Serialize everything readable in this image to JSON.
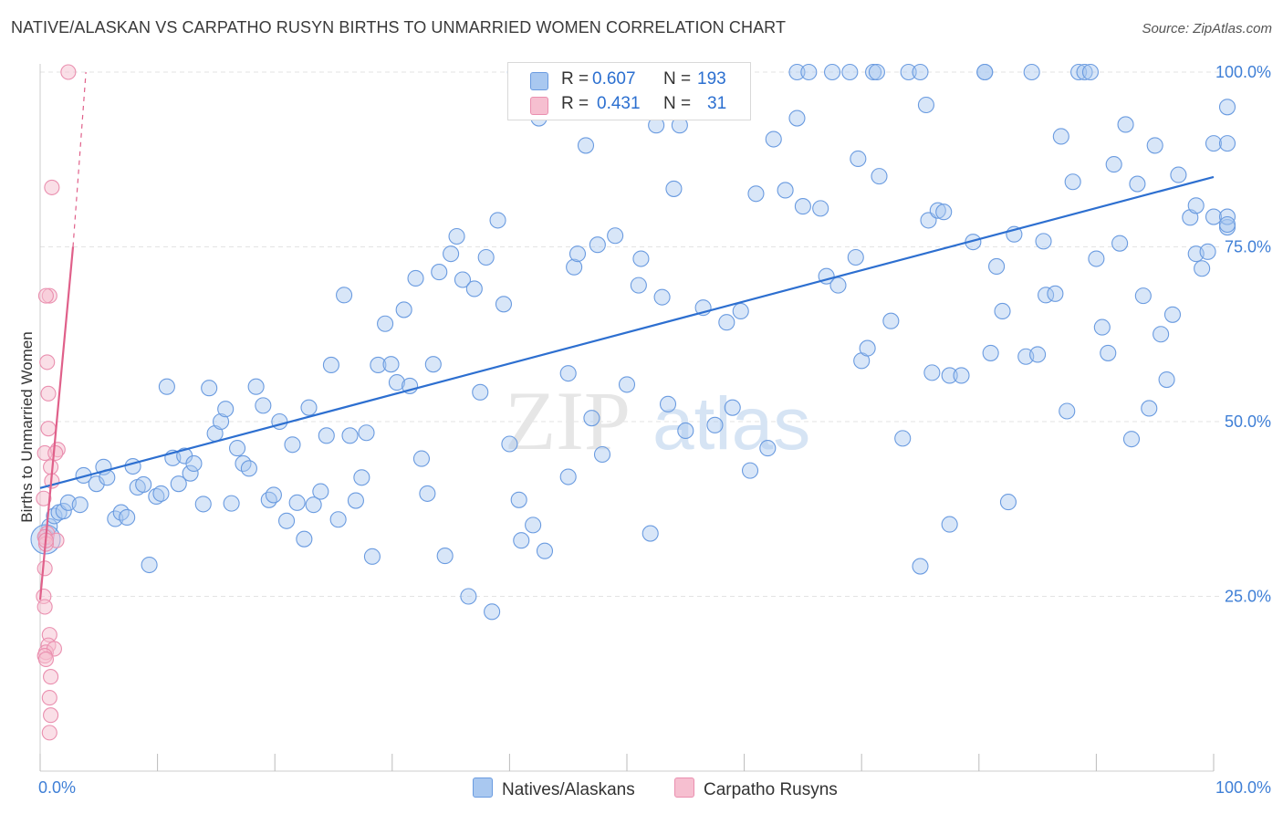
{
  "title": "NATIVE/ALASKAN VS CARPATHO RUSYN BIRTHS TO UNMARRIED WOMEN CORRELATION CHART",
  "source": "Source: ZipAtlas.com",
  "watermark": {
    "zip": "ZIP",
    "atlas": "atlas"
  },
  "colors": {
    "blue_fill": "#a9c8f0",
    "blue_stroke": "#6a9be0",
    "blue_line": "#2d6fd0",
    "pink_fill": "#f6bfd0",
    "pink_stroke": "#ea8faf",
    "pink_line": "#e0608a",
    "tick_label": "#3f7fd6",
    "grid": "#e3e3e3"
  },
  "legend": {
    "r_label": "R =",
    "n_label": "N =",
    "series": [
      {
        "r": "0.607",
        "n": "193"
      },
      {
        "r": "0.431",
        "n": "31"
      }
    ]
  },
  "chart_data": {
    "type": "scatter",
    "xlabel": "",
    "ylabel": "Births to Unmarried Women",
    "xlim": [
      0,
      100
    ],
    "ylim": [
      0,
      100
    ],
    "x_tick_labels": [
      "0.0%",
      "100.0%"
    ],
    "y_tick_labels": [
      "25.0%",
      "50.0%",
      "75.0%",
      "100.0%"
    ],
    "y_ticks": [
      25,
      50,
      75,
      100
    ],
    "grid": true,
    "legend_position": "top-center",
    "series": [
      {
        "name": "Natives/Alaskans",
        "color": "#6a9be0",
        "trend": {
          "x": [
            0,
            100
          ],
          "y": [
            40.5,
            85.0
          ]
        },
        "points": [
          [
            0.5,
            33.5
          ],
          [
            0.8,
            35.0
          ],
          [
            1.2,
            36.5
          ],
          [
            1.6,
            37.0
          ],
          [
            2.0,
            37.2
          ],
          [
            2.4,
            38.4
          ],
          [
            3.4,
            38.1
          ],
          [
            3.7,
            42.3
          ],
          [
            4.8,
            41.1
          ],
          [
            5.4,
            43.5
          ],
          [
            5.7,
            42.0
          ],
          [
            6.4,
            36.1
          ],
          [
            6.9,
            37.0
          ],
          [
            7.4,
            36.3
          ],
          [
            7.9,
            43.6
          ],
          [
            8.3,
            40.6
          ],
          [
            8.8,
            41.0
          ],
          [
            9.3,
            29.5
          ],
          [
            9.9,
            39.3
          ],
          [
            10.3,
            39.7
          ],
          [
            10.8,
            55.0
          ],
          [
            11.3,
            44.8
          ],
          [
            11.8,
            41.1
          ],
          [
            12.3,
            45.1
          ],
          [
            12.8,
            42.6
          ],
          [
            13.1,
            44.0
          ],
          [
            13.9,
            38.2
          ],
          [
            14.4,
            54.8
          ],
          [
            14.9,
            48.3
          ],
          [
            15.4,
            50.0
          ],
          [
            15.8,
            51.8
          ],
          [
            16.3,
            38.3
          ],
          [
            16.8,
            46.2
          ],
          [
            17.3,
            44.0
          ],
          [
            17.8,
            43.3
          ],
          [
            18.4,
            55.0
          ],
          [
            19.0,
            52.3
          ],
          [
            19.5,
            38.8
          ],
          [
            19.9,
            39.5
          ],
          [
            20.4,
            50.0
          ],
          [
            21.0,
            35.8
          ],
          [
            21.5,
            46.7
          ],
          [
            21.9,
            38.4
          ],
          [
            22.5,
            33.2
          ],
          [
            22.9,
            52.0
          ],
          [
            23.3,
            38.1
          ],
          [
            23.9,
            40.0
          ],
          [
            24.4,
            48.0
          ],
          [
            24.8,
            58.1
          ],
          [
            25.4,
            36.0
          ],
          [
            25.9,
            68.1
          ],
          [
            26.4,
            48.0
          ],
          [
            26.9,
            38.7
          ],
          [
            27.4,
            42.0
          ],
          [
            27.8,
            48.4
          ],
          [
            28.3,
            30.7
          ],
          [
            28.8,
            58.1
          ],
          [
            29.4,
            64.0
          ],
          [
            29.9,
            58.2
          ],
          [
            30.4,
            55.6
          ],
          [
            31.0,
            66.0
          ],
          [
            31.5,
            55.1
          ],
          [
            32.0,
            70.5
          ],
          [
            32.5,
            44.7
          ],
          [
            33.0,
            39.7
          ],
          [
            33.5,
            58.2
          ],
          [
            34.0,
            71.4
          ],
          [
            34.5,
            30.8
          ],
          [
            35.0,
            74.0
          ],
          [
            35.5,
            76.5
          ],
          [
            36.0,
            70.3
          ],
          [
            36.5,
            25.0
          ],
          [
            37.0,
            69.0
          ],
          [
            37.5,
            54.2
          ],
          [
            38.0,
            73.5
          ],
          [
            38.5,
            22.8
          ],
          [
            39.0,
            78.8
          ],
          [
            39.5,
            66.8
          ],
          [
            40.0,
            46.8
          ],
          [
            40.5,
            100.0
          ],
          [
            40.8,
            38.8
          ],
          [
            41.0,
            33.0
          ],
          [
            41.5,
            96.5
          ],
          [
            42.0,
            35.2
          ],
          [
            42.5,
            93.4
          ],
          [
            43.0,
            31.5
          ],
          [
            43.5,
            100.0
          ],
          [
            44.0,
            100.0
          ],
          [
            45.0,
            56.9
          ],
          [
            45.0,
            42.1
          ],
          [
            45.5,
            72.1
          ],
          [
            45.8,
            74.0
          ],
          [
            46.0,
            100.0
          ],
          [
            46.5,
            89.5
          ],
          [
            47.0,
            50.5
          ],
          [
            47.5,
            75.3
          ],
          [
            47.9,
            45.3
          ],
          [
            48.4,
            100.0
          ],
          [
            49.0,
            76.6
          ],
          [
            50.0,
            55.3
          ],
          [
            50.5,
            100.0
          ],
          [
            51.0,
            69.5
          ],
          [
            51.2,
            73.3
          ],
          [
            52.0,
            34.0
          ],
          [
            52.5,
            92.4
          ],
          [
            53.0,
            67.8
          ],
          [
            53.5,
            52.5
          ],
          [
            54.0,
            83.3
          ],
          [
            54.5,
            92.4
          ],
          [
            55.0,
            48.7
          ],
          [
            56.5,
            66.3
          ],
          [
            57.5,
            49.5
          ],
          [
            58.5,
            64.2
          ],
          [
            59.0,
            52.0
          ],
          [
            59.7,
            65.8
          ],
          [
            60.5,
            43.0
          ],
          [
            61.0,
            82.6
          ],
          [
            62.0,
            46.2
          ],
          [
            62.5,
            90.4
          ],
          [
            63.5,
            83.1
          ],
          [
            64.5,
            93.4
          ],
          [
            64.5,
            100.0
          ],
          [
            65.0,
            80.8
          ],
          [
            65.5,
            100.0
          ],
          [
            66.5,
            80.5
          ],
          [
            67.0,
            70.8
          ],
          [
            67.5,
            100.0
          ],
          [
            68.0,
            69.5
          ],
          [
            69.0,
            100.0
          ],
          [
            69.5,
            73.5
          ],
          [
            69.7,
            87.6
          ],
          [
            70.0,
            58.7
          ],
          [
            70.5,
            60.5
          ],
          [
            71.0,
            100.0
          ],
          [
            71.3,
            100.0
          ],
          [
            71.5,
            85.1
          ],
          [
            72.5,
            64.4
          ],
          [
            73.5,
            47.6
          ],
          [
            74.0,
            100.0
          ],
          [
            75.0,
            29.3
          ],
          [
            75.0,
            100.0
          ],
          [
            75.5,
            95.3
          ],
          [
            75.7,
            78.8
          ],
          [
            76.0,
            57.0
          ],
          [
            76.5,
            80.2
          ],
          [
            77.0,
            80.0
          ],
          [
            77.5,
            56.6
          ],
          [
            77.5,
            35.3
          ],
          [
            78.5,
            56.6
          ],
          [
            79.5,
            75.7
          ],
          [
            80.5,
            100.0
          ],
          [
            80.5,
            100.0
          ],
          [
            81.0,
            59.8
          ],
          [
            81.5,
            72.2
          ],
          [
            82.0,
            65.8
          ],
          [
            82.5,
            38.5
          ],
          [
            83.0,
            76.8
          ],
          [
            84.0,
            59.3
          ],
          [
            84.5,
            100.0
          ],
          [
            85.0,
            59.6
          ],
          [
            85.5,
            75.8
          ],
          [
            85.7,
            68.1
          ],
          [
            86.5,
            68.3
          ],
          [
            87.0,
            90.8
          ],
          [
            87.5,
            51.5
          ],
          [
            88.0,
            84.3
          ],
          [
            88.5,
            100.0
          ],
          [
            89.0,
            100.0
          ],
          [
            89.5,
            100.0
          ],
          [
            90.0,
            73.3
          ],
          [
            90.5,
            63.5
          ],
          [
            91.0,
            59.8
          ],
          [
            91.5,
            86.8
          ],
          [
            92.0,
            75.5
          ],
          [
            92.5,
            92.5
          ],
          [
            93.0,
            47.5
          ],
          [
            93.5,
            84.0
          ],
          [
            94.0,
            68.0
          ],
          [
            94.5,
            51.9
          ],
          [
            95.0,
            89.5
          ],
          [
            95.5,
            62.5
          ],
          [
            96.0,
            56.0
          ],
          [
            96.5,
            65.3
          ],
          [
            97.0,
            85.3
          ],
          [
            98.0,
            79.2
          ],
          [
            98.5,
            80.9
          ],
          [
            98.5,
            74.0
          ],
          [
            99.0,
            71.9
          ],
          [
            99.5,
            74.3
          ],
          [
            100.0,
            89.8
          ],
          [
            100.0,
            79.3
          ],
          [
            101.5,
            89.8
          ],
          [
            101.5,
            77.8
          ],
          [
            102.0,
            79.3
          ],
          [
            102.2,
            78.2
          ],
          [
            103.0,
            95.0
          ]
        ]
      },
      {
        "name": "Carpatho Rusyns",
        "color": "#ea8faf",
        "trend": {
          "x": [
            0,
            2.8
          ],
          "y": [
            24.5,
            75.0
          ]
        },
        "trend_dashed": {
          "x": [
            2.8,
            3.9
          ],
          "y": [
            75.0,
            100.0
          ]
        },
        "points": [
          [
            2.4,
            100.0
          ],
          [
            1.0,
            83.5
          ],
          [
            0.8,
            68.0
          ],
          [
            0.5,
            68.0
          ],
          [
            0.6,
            58.5
          ],
          [
            0.7,
            54.0
          ],
          [
            0.7,
            49.0
          ],
          [
            0.4,
            45.5
          ],
          [
            1.5,
            46.0
          ],
          [
            1.3,
            45.5
          ],
          [
            0.9,
            43.5
          ],
          [
            1.0,
            41.5
          ],
          [
            0.3,
            39.0
          ],
          [
            0.6,
            34.0
          ],
          [
            1.4,
            33.0
          ],
          [
            0.4,
            33.5
          ],
          [
            0.5,
            32.5
          ],
          [
            0.4,
            29.0
          ],
          [
            0.3,
            25.0
          ],
          [
            0.4,
            23.5
          ],
          [
            0.8,
            19.5
          ],
          [
            0.7,
            18.0
          ],
          [
            0.5,
            17.0
          ],
          [
            1.2,
            17.5
          ],
          [
            0.4,
            16.5
          ],
          [
            0.5,
            16.0
          ],
          [
            0.9,
            13.5
          ],
          [
            0.8,
            10.5
          ],
          [
            0.9,
            8.0
          ],
          [
            0.8,
            5.5
          ],
          [
            0.5,
            33.0
          ]
        ]
      }
    ]
  }
}
